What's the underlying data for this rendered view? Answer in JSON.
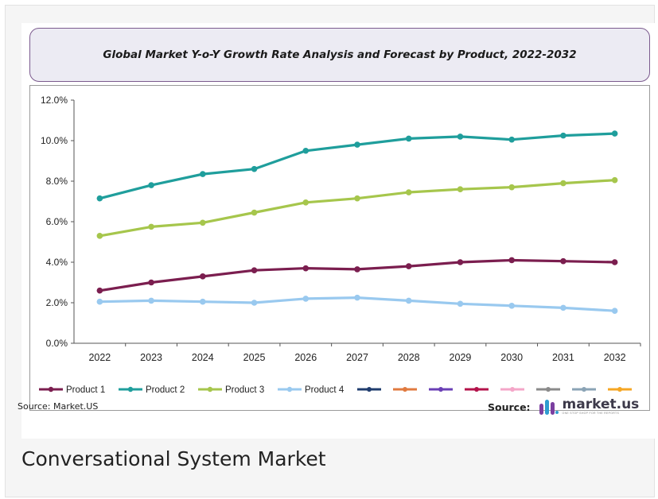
{
  "caption": "Conversational System Market",
  "source_left": "Source: Market.US",
  "source_right_label": "Source:",
  "logo": {
    "text": "market.us",
    "tagline": "ONE STOP SHOP FOR THE REPORTS"
  },
  "chart_data": {
    "type": "line",
    "title": "Global Market Y-o-Y  Growth Rate Analysis and Forecast by Product, 2022-2032",
    "xlabel": "",
    "ylabel": "",
    "categories": [
      "2022",
      "2023",
      "2024",
      "2025",
      "2026",
      "2027",
      "2028",
      "2029",
      "2030",
      "2031",
      "2032"
    ],
    "ylim": [
      0,
      12
    ],
    "yticks": [
      0,
      2,
      4,
      6,
      8,
      10,
      12
    ],
    "ytick_labels": [
      "0.0%",
      "2.0%",
      "4.0%",
      "6.0%",
      "8.0%",
      "10.0%",
      "12.0%"
    ],
    "grid": false,
    "legend_position": "bottom",
    "series": [
      {
        "name": "Product 1",
        "color": "#7b1e4f",
        "values": [
          2.6,
          3.0,
          3.3,
          3.6,
          3.7,
          3.65,
          3.8,
          4.0,
          4.1,
          4.05,
          4.0
        ]
      },
      {
        "name": "Product 2",
        "color": "#1f9e9c",
        "values": [
          7.15,
          7.8,
          8.35,
          8.6,
          9.5,
          9.8,
          10.1,
          10.2,
          10.05,
          10.25,
          10.35
        ]
      },
      {
        "name": "Product 3",
        "color": "#a6c64c",
        "values": [
          5.3,
          5.75,
          5.95,
          6.45,
          6.95,
          7.15,
          7.45,
          7.6,
          7.7,
          7.9,
          8.05
        ]
      },
      {
        "name": "Product 4",
        "color": "#99c9ef",
        "values": [
          2.05,
          2.1,
          2.05,
          2.0,
          2.2,
          2.25,
          2.1,
          1.95,
          1.85,
          1.75,
          1.6
        ]
      }
    ],
    "unlabeled_legend_swatches": [
      "#1f3c6e",
      "#e07a3f",
      "#6a3fb5",
      "#b3124a",
      "#f4a6c8",
      "#8a8a8a",
      "#8aa3b5",
      "#f5a623"
    ]
  }
}
